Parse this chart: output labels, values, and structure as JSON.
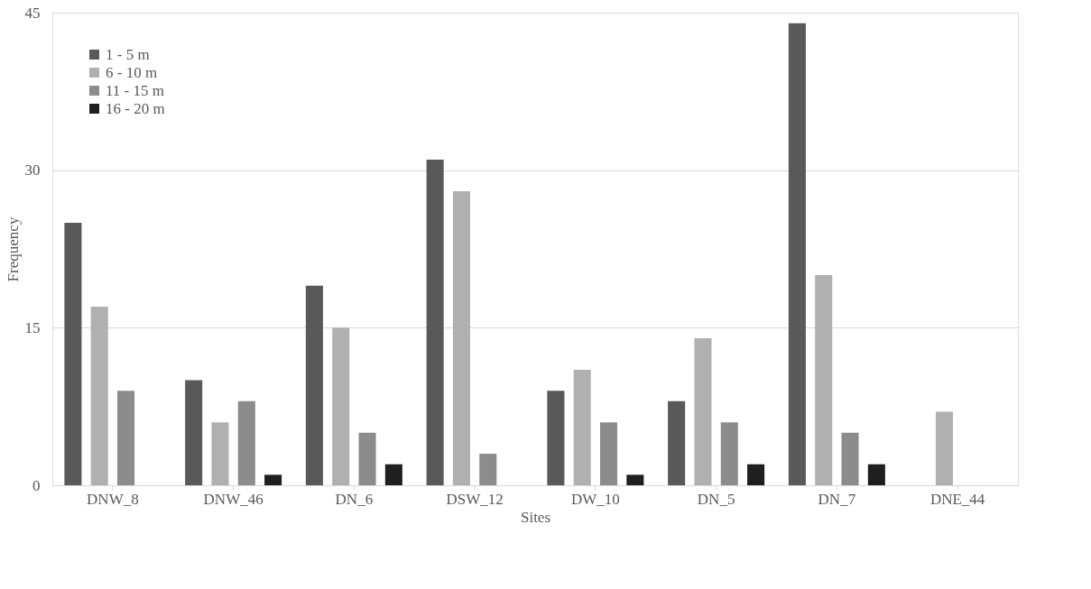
{
  "chart_data": {
    "type": "bar",
    "xlabel": "Sites",
    "ylabel": "Frequency",
    "categories": [
      "DNW_8",
      "DNW_46",
      "DN_6",
      "DSW_12",
      "DW_10",
      "DN_5",
      "DN_7",
      "DNE_44"
    ],
    "series": [
      {
        "name": "1 - 5 m",
        "color": "#595959",
        "values": [
          25,
          10,
          19,
          31,
          9,
          8,
          44,
          0
        ]
      },
      {
        "name": "6 - 10 m",
        "color": "#b0b0b0",
        "values": [
          17,
          6,
          15,
          28,
          11,
          14,
          20,
          7
        ]
      },
      {
        "name": "11 - 15 m",
        "color": "#8c8c8c",
        "values": [
          9,
          8,
          5,
          3,
          6,
          6,
          5,
          0
        ]
      },
      {
        "name": "16 - 20 m",
        "color": "#1f1f1f",
        "values": [
          0,
          1,
          2,
          0,
          1,
          2,
          2,
          0
        ]
      }
    ],
    "ylim": [
      0,
      45
    ],
    "yticks": [
      0,
      15,
      30,
      45
    ],
    "grid": "y",
    "legend": "top left"
  }
}
